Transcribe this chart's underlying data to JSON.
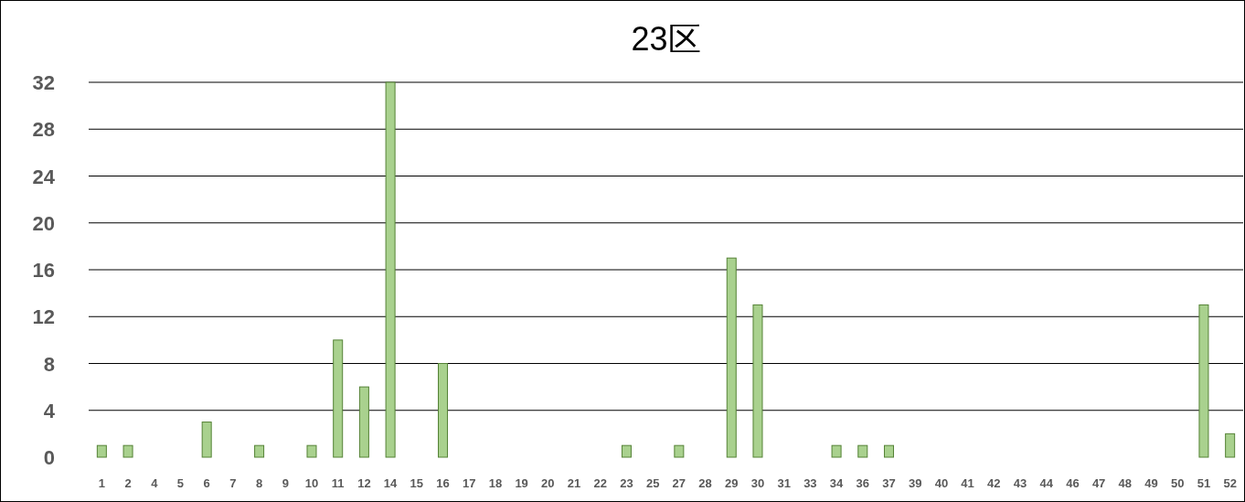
{
  "chart_data": {
    "type": "bar",
    "title": "23区",
    "categories": [
      "1",
      "2",
      "4",
      "5",
      "6",
      "7",
      "8",
      "9",
      "10",
      "11",
      "12",
      "14",
      "15",
      "16",
      "17",
      "18",
      "19",
      "20",
      "21",
      "22",
      "23",
      "25",
      "27",
      "28",
      "29",
      "30",
      "31",
      "33",
      "34",
      "36",
      "37",
      "39",
      "40",
      "41",
      "42",
      "43",
      "44",
      "46",
      "47",
      "48",
      "49",
      "50",
      "51",
      "52"
    ],
    "values": [
      1,
      1,
      0,
      0,
      3,
      0,
      1,
      0,
      1,
      10,
      6,
      32,
      0,
      8,
      0,
      0,
      0,
      0,
      0,
      0,
      1,
      0,
      1,
      0,
      17,
      13,
      0,
      0,
      1,
      1,
      1,
      0,
      0,
      0,
      0,
      0,
      0,
      0,
      0,
      0,
      0,
      0,
      13,
      2
    ],
    "color": "#a9d18e",
    "ylim": [
      0,
      32
    ],
    "yticks": [
      0,
      4,
      8,
      12,
      16,
      20,
      24,
      28,
      32
    ],
    "grid": "y"
  }
}
